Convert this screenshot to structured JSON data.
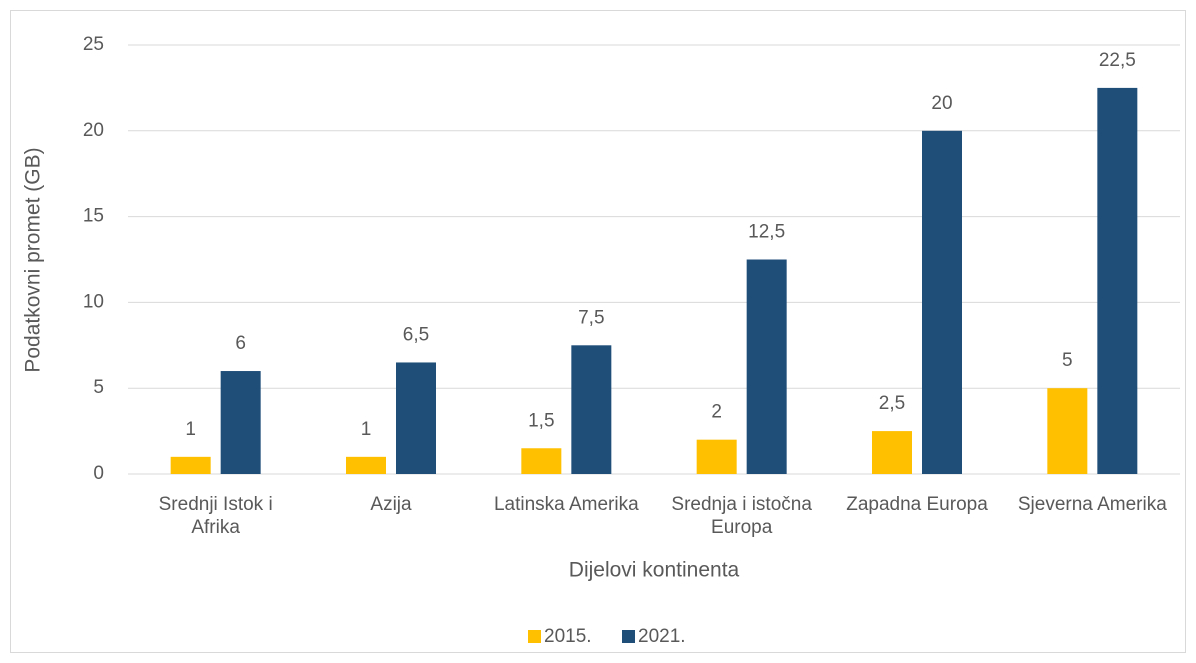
{
  "chart_data": {
    "type": "bar",
    "x_label": "Dijelovi kontinenta",
    "y_label": "Podatkovni promet (GB)",
    "categories": [
      "Srednji Istok i Afrika",
      "Azija",
      "Latinska Amerika",
      "Srednja i istočna Europa",
      "Zapadna Europa",
      "Sjeverna Amerika"
    ],
    "series": [
      {
        "name": "2015.",
        "color": "#ffc000",
        "values": [
          1,
          1,
          1.5,
          2,
          2.5,
          5
        ],
        "value_labels": [
          "1",
          "1",
          "1,5",
          "2",
          "2,5",
          "5"
        ]
      },
      {
        "name": "2021.",
        "color": "#1f4e79",
        "values": [
          6,
          6.5,
          7.5,
          12.5,
          20,
          22.5
        ],
        "value_labels": [
          "6",
          "6,5",
          "7,5",
          "12,5",
          "20",
          "22,5"
        ]
      }
    ],
    "ylim": [
      0,
      25
    ],
    "yticks": [
      0,
      5,
      10,
      15,
      20,
      25
    ],
    "grid": true,
    "legend": "bottom"
  }
}
